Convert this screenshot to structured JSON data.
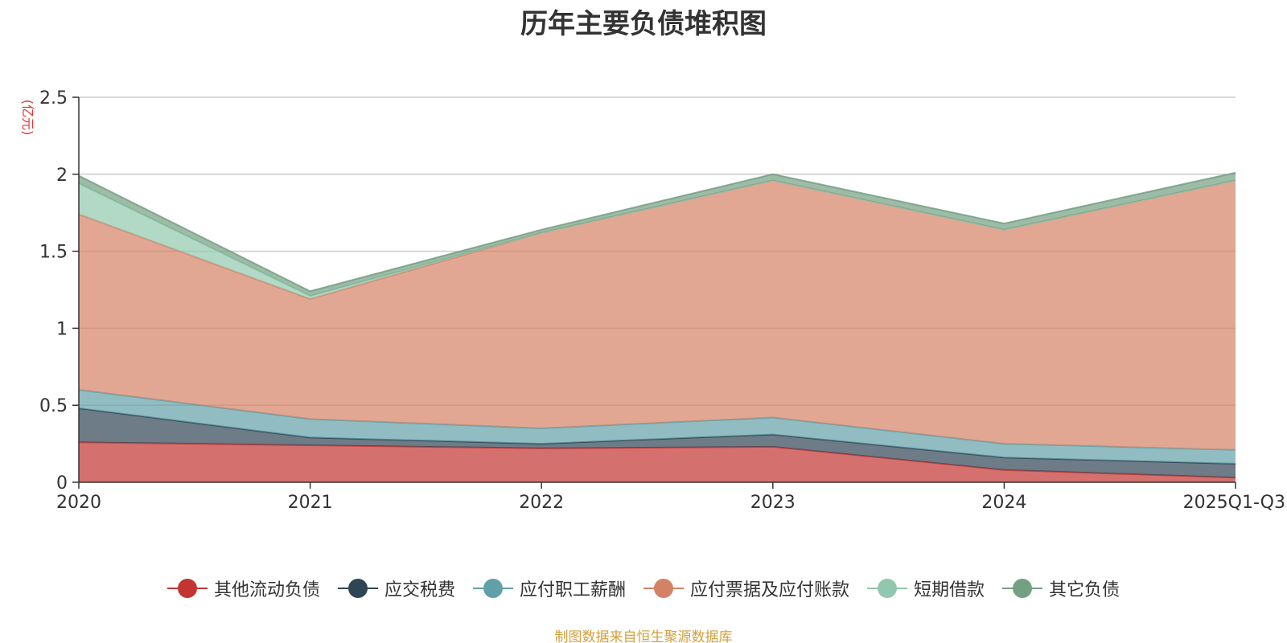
{
  "chart_data": {
    "type": "area",
    "stacked": true,
    "title": "历年主要负债堆积图",
    "unit_label": "(亿元)",
    "categories": [
      "2020",
      "2021",
      "2022",
      "2023",
      "2024",
      "2025Q1-Q3"
    ],
    "ylim": [
      0,
      2.5
    ],
    "yticks": [
      0,
      0.5,
      1,
      1.5,
      2,
      2.5
    ],
    "ytick_labels": [
      "0",
      "0.5",
      "1",
      "1.5",
      "2",
      "2.5"
    ],
    "grid": true,
    "legend_position": "bottom",
    "series": [
      {
        "name": "其他流动负债",
        "color": "#c23531",
        "values": [
          0.26,
          0.24,
          0.22,
          0.23,
          0.08,
          0.03
        ]
      },
      {
        "name": "应交税费",
        "color": "#2f4554",
        "values": [
          0.22,
          0.05,
          0.03,
          0.08,
          0.08,
          0.09
        ]
      },
      {
        "name": "应付职工薪酬",
        "color": "#61a0a8",
        "values": [
          0.12,
          0.12,
          0.1,
          0.11,
          0.09,
          0.09
        ]
      },
      {
        "name": "应付票据及应付账款",
        "color": "#d48265",
        "values": [
          1.14,
          0.78,
          1.27,
          1.54,
          1.39,
          1.75
        ]
      },
      {
        "name": "短期借款",
        "color": "#91c7ae",
        "values": [
          0.2,
          0.02,
          0.0,
          0.0,
          0.0,
          0.0
        ]
      },
      {
        "name": "其它负债",
        "color": "#749f83",
        "values": [
          0.05,
          0.03,
          0.02,
          0.04,
          0.04,
          0.05
        ]
      }
    ]
  },
  "source_note": "制图数据来自恒生聚源数据库"
}
